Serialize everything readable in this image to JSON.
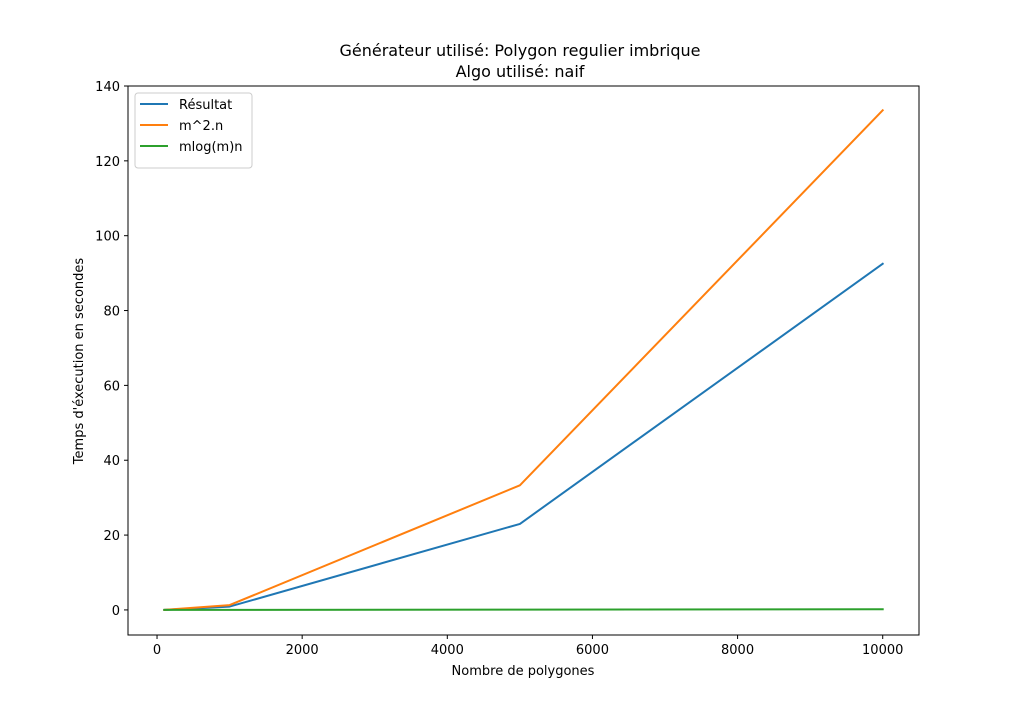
{
  "chart_data": {
    "type": "line",
    "title": "Générateur utilisé: Polygon regulier imbrique",
    "subtitle": "Algo utilisé: naif",
    "xlabel": "Nombre de polygones",
    "ylabel": "Temps d'éxecution en secondes",
    "xlim": [
      -400,
      10500
    ],
    "ylim": [
      -6.7,
      140
    ],
    "xticks": [
      0,
      2000,
      4000,
      6000,
      8000,
      10000
    ],
    "xtick_labels": [
      "0",
      "2000",
      "4000",
      "6000",
      "8000",
      "10000"
    ],
    "yticks": [
      0,
      20,
      40,
      60,
      80,
      100,
      120,
      140
    ],
    "ytick_labels": [
      "0",
      "20",
      "40",
      "60",
      "80",
      "100",
      "120",
      "140"
    ],
    "grid": false,
    "legend_position": "top-left",
    "x": [
      100,
      1000,
      5000,
      10000
    ],
    "series": [
      {
        "name": "Résultat",
        "color": "#1f77b4",
        "values": [
          0.0,
          0.9,
          23.0,
          92.5
        ]
      },
      {
        "name": "m^2.n",
        "color": "#ff7f0e",
        "values": [
          0.0,
          1.3,
          33.3,
          133.5
        ]
      },
      {
        "name": "mlog(m)n",
        "color": "#2ca02c",
        "values": [
          0.0,
          0.0,
          0.1,
          0.2
        ]
      }
    ]
  }
}
